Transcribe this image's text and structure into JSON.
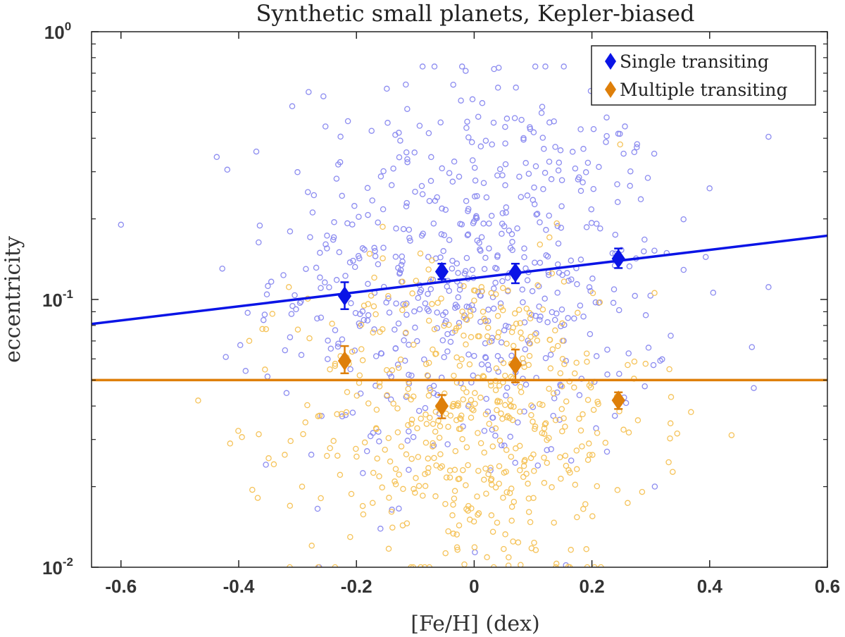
{
  "chart_data": {
    "type": "scatter",
    "title": "Synthetic small planets, Kepler-biased",
    "xlabel": "[Fe/H] (dex)",
    "ylabel": "eccentricity",
    "xlim": [
      -0.65,
      0.6
    ],
    "ylim": [
      0.01,
      1
    ],
    "y_scale": "log",
    "x_ticks": [
      -0.6,
      -0.4,
      -0.2,
      0,
      0.2,
      0.4,
      0.6
    ],
    "x_tick_labels": [
      "-0.6",
      "-0.4",
      "-0.2",
      "0",
      "0.2",
      "0.4",
      "0.6"
    ],
    "y_ticks": [
      0.01,
      0.1,
      1
    ],
    "y_tick_labels": [
      {
        "base": "10",
        "exp": "-2"
      },
      {
        "base": "10",
        "exp": "-1"
      },
      {
        "base": "10",
        "exp": "0"
      }
    ],
    "grid": false,
    "legend_position": "top-right",
    "colors": {
      "single": "#0a14e6",
      "multiple": "#de7f0a",
      "single_scatter": "#8c8cf0",
      "multiple_scatter": "#f5c35a"
    },
    "series": [
      {
        "name": "Single transiting",
        "kind": "binned-mean",
        "x": [
          -0.22,
          -0.055,
          0.07,
          0.245
        ],
        "y": [
          0.103,
          0.127,
          0.126,
          0.142
        ],
        "y_err_low": [
          0.011,
          0.008,
          0.011,
          0.011
        ],
        "y_err_high": [
          0.013,
          0.009,
          0.01,
          0.013
        ]
      },
      {
        "name": "Multiple transiting",
        "kind": "binned-mean",
        "x": [
          -0.22,
          -0.055,
          0.07,
          0.245
        ],
        "y": [
          0.059,
          0.04,
          0.057,
          0.042
        ],
        "y_err_low": [
          0.006,
          0.004,
          0.008,
          0.003
        ],
        "y_err_high": [
          0.008,
          0.004,
          0.008,
          0.003
        ]
      },
      {
        "kind": "fit-line",
        "x": [
          -0.65,
          0.6
        ],
        "y": [
          0.081,
          0.173
        ]
      },
      {
        "kind": "fit-line",
        "x": [
          -0.65,
          0.6
        ],
        "y": [
          0.05,
          0.05
        ]
      },
      {
        "kind": "scatter-cloud",
        "count": 620,
        "x_mean": 0.0,
        "x_sd": 0.17,
        "log10_y_mean": -0.9,
        "log10_y_sd": 0.38
      },
      {
        "kind": "scatter-cloud",
        "count": 520,
        "x_mean": 0.0,
        "x_sd": 0.15,
        "log10_y_mean": -1.45,
        "log10_y_sd": 0.3
      }
    ]
  }
}
